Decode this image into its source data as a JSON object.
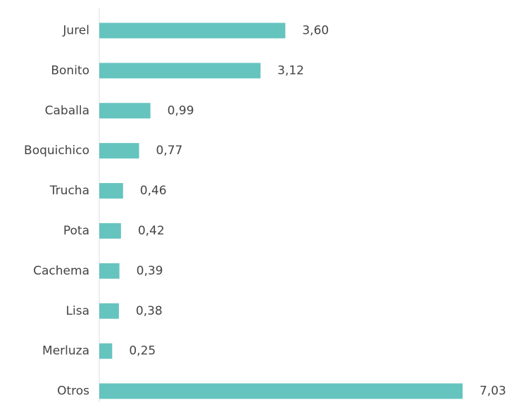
{
  "chart_data": {
    "type": "bar",
    "categories": [
      "Jurel",
      "Bonito",
      "Caballa",
      "Boquichico",
      "Trucha",
      "Pota",
      "Cachema",
      "Lisa",
      "Merluza",
      "Otros"
    ],
    "values": [
      3.6,
      3.12,
      0.99,
      0.77,
      0.46,
      0.42,
      0.39,
      0.38,
      0.25,
      7.03
    ],
    "value_labels": [
      "3,60",
      "3,12",
      "0,99",
      "0,77",
      "0,46",
      "0,42",
      "0,39",
      "0,38",
      "0,25",
      "7,03"
    ],
    "color": "#66c4bf"
  }
}
